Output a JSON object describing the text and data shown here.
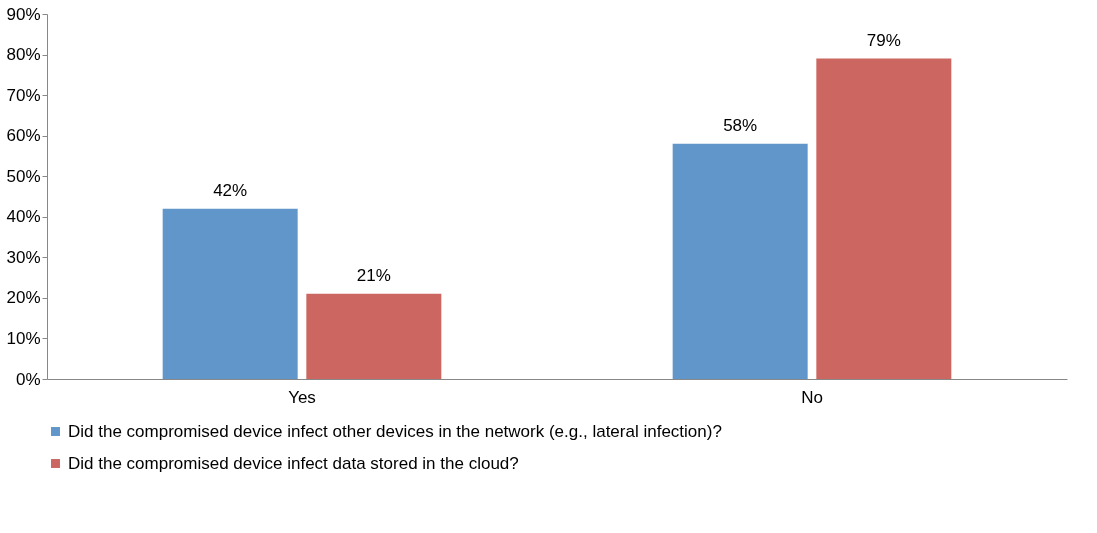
{
  "chart_data": {
    "type": "bar",
    "categories": [
      "Yes",
      "No"
    ],
    "series": [
      {
        "name": "Did the compromised device infect other devices in the network (e.g., lateral infection)?",
        "color": "#6096c9",
        "values": [
          42,
          58
        ],
        "value_labels": [
          "42%",
          "58%"
        ]
      },
      {
        "name": "Did the compromised device infect data stored in the cloud?",
        "color": "#cc6660",
        "values": [
          21,
          79
        ],
        "value_labels": [
          "21%",
          "79%"
        ]
      }
    ],
    "ylim": [
      0,
      90
    ],
    "yticks": [
      {
        "value": 0,
        "label": "0%"
      },
      {
        "value": 10,
        "label": "10%"
      },
      {
        "value": 20,
        "label": "20%"
      },
      {
        "value": 30,
        "label": "30%"
      },
      {
        "value": 40,
        "label": "40%"
      },
      {
        "value": 50,
        "label": "50%"
      },
      {
        "value": 60,
        "label": "60%"
      },
      {
        "value": 70,
        "label": "70%"
      },
      {
        "value": 80,
        "label": "80%"
      },
      {
        "value": 90,
        "label": "90%"
      }
    ],
    "legend": "bottom"
  }
}
